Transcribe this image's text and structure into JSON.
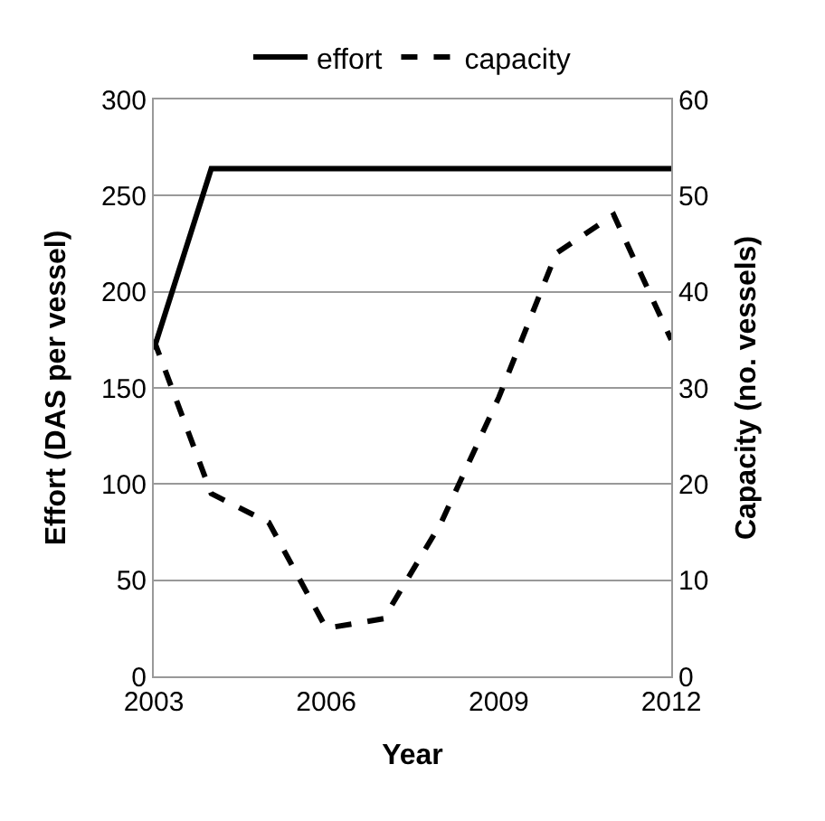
{
  "chart_data": {
    "type": "line",
    "xlabel": "Year",
    "ylabel": "Effort (DAS per vessel)",
    "y2label": "Capacity (no. vessels)",
    "x": [
      2003,
      2004,
      2005,
      2006,
      2007,
      2008,
      2009,
      2010,
      2011,
      2012
    ],
    "series": [
      {
        "name": "effort",
        "color": "#000000",
        "line_style": "solid",
        "values": [
          170,
          264,
          264,
          264,
          264,
          264,
          264,
          264,
          264,
          264
        ]
      },
      {
        "name": "capacity",
        "color": "#000000",
        "line_style": "dashed",
        "axis": "y2",
        "values": [
          35,
          19,
          16,
          5,
          6,
          16,
          29,
          44,
          48,
          35
        ]
      }
    ],
    "xlim": [
      2003,
      2012
    ],
    "xticks": [
      2003,
      2006,
      2009,
      2012
    ],
    "ylim": [
      0,
      300
    ],
    "yticks": [
      0,
      50,
      100,
      150,
      200,
      250,
      300
    ],
    "y2lim": [
      0,
      60
    ],
    "y2ticks": [
      0,
      10,
      20,
      30,
      40,
      50,
      60
    ],
    "grid": "y",
    "legend": "top",
    "marker": "none"
  }
}
